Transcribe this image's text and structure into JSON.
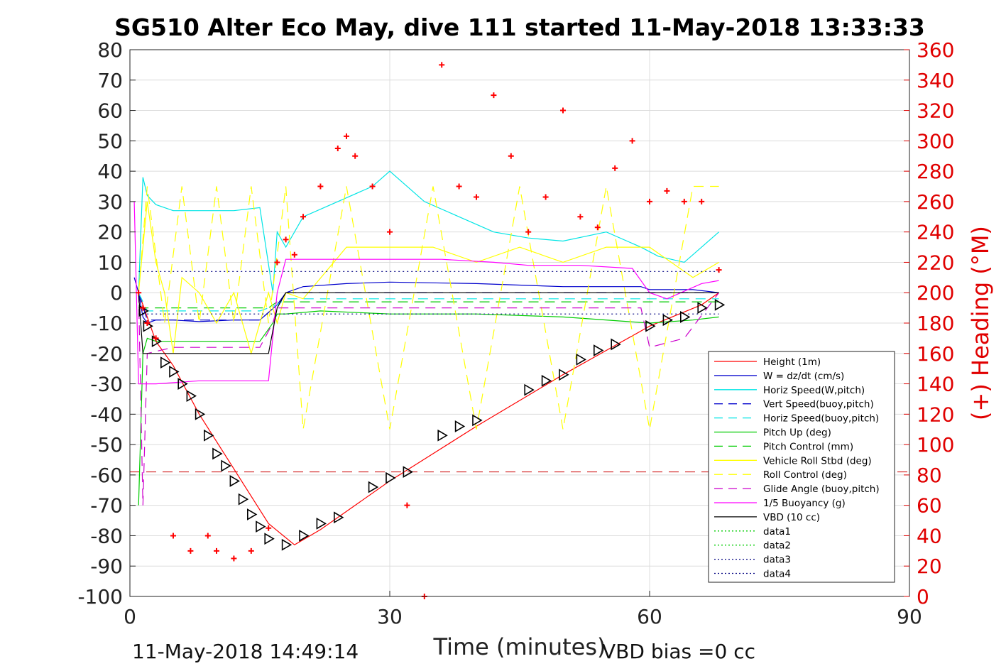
{
  "title": "SG510 Alter Eco May, dive 111 started 11-May-2018 13:33:33",
  "footer_left": "11-May-2018 14:49:14",
  "footer_right": "VBD bias =0 cc",
  "chart_data": {
    "type": "line",
    "xlabel": "Time (minutes)",
    "ylabel": "",
    "y2label": "(+) Heading (°M)",
    "xlim": [
      0,
      90
    ],
    "ylim": [
      -100,
      80
    ],
    "y2lim": [
      0,
      360
    ],
    "xticks": [
      0,
      30,
      60,
      90
    ],
    "yticks": [
      80,
      70,
      60,
      50,
      40,
      30,
      20,
      10,
      0,
      -10,
      -20,
      -30,
      -40,
      -50,
      -60,
      -70,
      -80,
      -90,
      -100
    ],
    "y2ticks": [
      360,
      340,
      320,
      300,
      280,
      260,
      240,
      220,
      200,
      180,
      160,
      140,
      120,
      100,
      80,
      60,
      40,
      20,
      0
    ],
    "grid": true,
    "legend_position": "lower-right",
    "colors": {
      "height": "#ff0000",
      "w": "#0000cc",
      "horiz": "#00e5e5",
      "pitch": "#00cc00",
      "roll": "#ffff00",
      "glide": "#cc00cc",
      "buoy": "#ff00ff",
      "vbd": "#000000",
      "heading": "#ff0000",
      "depth_marker": "#000000"
    },
    "series": [
      {
        "name": "Height (1m)",
        "style": "solid",
        "color": "#ff0000",
        "x": [
          1,
          2,
          3,
          5,
          8,
          12,
          16,
          19,
          22,
          30,
          40,
          50,
          60,
          66,
          68
        ],
        "y": [
          0,
          -8,
          -16,
          -24,
          -40,
          -58,
          -76,
          -83,
          -78,
          -62,
          -44,
          -27,
          -11,
          -4,
          0
        ]
      },
      {
        "name": "W = dz/dt (cm/s)",
        "style": "solid",
        "color": "#0000cc",
        "x": [
          0.5,
          1,
          1.5,
          2,
          3,
          5,
          8,
          12,
          15,
          17,
          18,
          20,
          25,
          30,
          40,
          50,
          59,
          60,
          65,
          68
        ],
        "y": [
          5,
          0,
          -8,
          -10,
          -9,
          -9,
          -9.5,
          -9,
          -9,
          -4,
          0,
          2,
          3,
          3.5,
          3,
          2,
          2,
          1,
          1,
          0
        ]
      },
      {
        "name": "Horiz Speed(W,pitch)",
        "style": "solid",
        "color": "#00e5e5",
        "x": [
          1,
          1.5,
          2,
          3,
          5,
          8,
          12,
          15,
          16.5,
          17,
          18,
          20,
          24,
          28,
          30,
          34,
          38,
          42,
          46,
          50,
          55,
          59,
          61,
          64,
          66,
          68
        ],
        "y": [
          0,
          38,
          32,
          29,
          27,
          27,
          27,
          28,
          0,
          20,
          15,
          25,
          30,
          35,
          40,
          30,
          25,
          20,
          18,
          17,
          20,
          15,
          12,
          10,
          15,
          20
        ]
      },
      {
        "name": "Vert Speed(buoy,pitch)",
        "style": "dashed",
        "color": "#0000cc",
        "x": [
          1,
          2,
          5,
          10,
          15,
          17,
          18,
          30,
          45,
          60,
          68
        ],
        "y": [
          0,
          -9,
          -9,
          -9,
          -9,
          -4,
          0,
          0,
          0,
          0,
          0
        ]
      },
      {
        "name": "Horiz Speed(buoy,pitch)",
        "style": "dashed",
        "color": "#00e5e5",
        "x": [
          1,
          2,
          5,
          10,
          15,
          17,
          18,
          30,
          45,
          60,
          68
        ],
        "y": [
          0,
          -6,
          -6,
          -6,
          -6,
          -4,
          -2,
          -2,
          -2,
          -2,
          -2
        ]
      },
      {
        "name": "Pitch Up (deg)",
        "style": "solid",
        "color": "#00cc00",
        "x": [
          1,
          1.5,
          2,
          3,
          5,
          8,
          12,
          15,
          16.5,
          17,
          18,
          22,
          30,
          40,
          50,
          60,
          65,
          68
        ],
        "y": [
          -70,
          -20,
          -15,
          -16,
          -16,
          -16,
          -16,
          -16,
          -10,
          -7,
          -7,
          -6,
          -7,
          -7,
          -8,
          -10,
          -9,
          -8
        ]
      },
      {
        "name": "Pitch Control (mm)",
        "style": "dashed",
        "color": "#00cc00",
        "x": [
          1,
          2,
          16,
          17,
          68
        ],
        "y": [
          -5,
          -5,
          -5,
          -3,
          -3
        ]
      },
      {
        "name": "Vehicle Roll Stbd (deg)",
        "style": "solid",
        "color": "#ffff00",
        "x": [
          1,
          2,
          3,
          4,
          5,
          6,
          8,
          10,
          12,
          14,
          16,
          17,
          18,
          20,
          25,
          30,
          35,
          40,
          45,
          50,
          55,
          60,
          65,
          68
        ],
        "y": [
          0,
          30,
          10,
          0,
          -20,
          5,
          0,
          -10,
          0,
          -20,
          0,
          -10,
          0,
          -2,
          15,
          15,
          15,
          10,
          15,
          10,
          15,
          15,
          5,
          10
        ]
      },
      {
        "name": "Roll Control (deg)",
        "style": "dashed",
        "color": "#ffff00",
        "x": [
          1,
          2,
          4,
          6,
          8,
          10,
          12,
          14,
          16,
          18,
          20,
          25,
          30,
          35,
          40,
          45,
          50,
          55,
          60,
          65,
          68
        ],
        "y": [
          0,
          35,
          -10,
          35,
          -10,
          35,
          -10,
          35,
          -10,
          35,
          -45,
          35,
          -45,
          35,
          -45,
          35,
          -45,
          35,
          -45,
          35,
          35
        ]
      },
      {
        "name": "Glide Angle (buoy,pitch)",
        "style": "dashed",
        "color": "#cc00cc",
        "x": [
          1,
          1.5,
          2,
          5,
          10,
          15,
          16.5,
          17,
          18,
          30,
          45,
          59,
          60,
          64,
          68
        ],
        "y": [
          0,
          -70,
          -20,
          -18,
          -18,
          -18,
          -10,
          -5,
          -5,
          -5,
          -5,
          -5,
          -18,
          -15,
          0
        ]
      },
      {
        "name": "1/5 Buoyancy (g)",
        "style": "solid",
        "color": "#ff00ff",
        "x": [
          0.5,
          1,
          2,
          3,
          8,
          12,
          16,
          17,
          18,
          25,
          30,
          36,
          42,
          46,
          52,
          58,
          60,
          62,
          66,
          68
        ],
        "y": [
          30,
          -30,
          -30,
          -30,
          -29,
          -29,
          -29,
          0,
          11,
          11,
          11,
          11,
          10,
          9,
          9,
          8,
          0,
          -2,
          3,
          4
        ]
      },
      {
        "name": "VBD (10 cc)",
        "style": "solid",
        "color": "#000000",
        "x": [
          1,
          1.5,
          2,
          5,
          10,
          15,
          16,
          17,
          18,
          30,
          45,
          60,
          68
        ],
        "y": [
          0,
          -20,
          -20,
          -20,
          -20,
          -20,
          -20,
          -5,
          0,
          0,
          0,
          0,
          0
        ]
      },
      {
        "name": "data1",
        "style": "dotted",
        "color": "#00cc00",
        "x": [],
        "y": []
      },
      {
        "name": "data2",
        "style": "dotted",
        "color": "#00cc00",
        "x": [],
        "y": []
      },
      {
        "name": "data3",
        "style": "dotted",
        "color": "#000080",
        "x": [
          1,
          68
        ],
        "y": [
          7,
          7
        ]
      },
      {
        "name": "data4",
        "style": "dotted",
        "color": "#000080",
        "x": [
          1,
          68
        ],
        "y": [
          -7,
          -7
        ]
      }
    ],
    "reference_line": {
      "y": -59,
      "color": "#cc0000",
      "style": "dashed"
    },
    "heading_points": {
      "axis": "right",
      "x": [
        1,
        1.5,
        2,
        3,
        5,
        7,
        9,
        10,
        12,
        14,
        16,
        17,
        18,
        19,
        20,
        22,
        24,
        25,
        26,
        28,
        30,
        32,
        34,
        36,
        38,
        40,
        42,
        44,
        46,
        48,
        50,
        52,
        54,
        56,
        58,
        60,
        62,
        64,
        66,
        68
      ],
      "y": [
        200,
        190,
        180,
        170,
        40,
        30,
        40,
        30,
        25,
        30,
        45,
        220,
        235,
        225,
        250,
        270,
        295,
        303,
        290,
        270,
        240,
        60,
        0,
        350,
        270,
        263,
        330,
        290,
        240,
        263,
        320,
        250,
        243,
        282,
        300,
        260,
        267,
        260,
        260,
        215
      ]
    },
    "depth_markers": {
      "x": [
        1.5,
        2,
        3,
        4,
        5,
        6,
        7,
        8,
        9,
        10,
        11,
        12,
        13,
        14,
        15,
        16,
        18,
        20,
        22,
        24,
        28,
        30,
        32,
        36,
        38,
        40,
        46,
        48,
        50,
        52,
        54,
        56,
        60,
        62,
        64,
        66,
        68
      ],
      "y": [
        -6,
        -11,
        -16,
        -23,
        -26,
        -30,
        -34,
        -40,
        -47,
        -53,
        -57,
        -62,
        -68,
        -73,
        -77,
        -81,
        -83,
        -80,
        -76,
        -74,
        -64,
        -61,
        -59,
        -47,
        -44,
        -42,
        -32,
        -29,
        -27,
        -22,
        -19,
        -17,
        -11,
        -9,
        -8,
        -5,
        -4
      ]
    }
  },
  "legend": {
    "items": [
      {
        "label": "Height (1m)",
        "color": "#ff0000",
        "dash": ""
      },
      {
        "label": "W = dz/dt (cm/s)",
        "color": "#0000cc",
        "dash": ""
      },
      {
        "label": "Horiz Speed(W,pitch)",
        "color": "#00e5e5",
        "dash": ""
      },
      {
        "label": "Vert Speed(buoy,pitch)",
        "color": "#0000cc",
        "dash": "12,8"
      },
      {
        "label": "Horiz Speed(buoy,pitch)",
        "color": "#00e5e5",
        "dash": "12,8"
      },
      {
        "label": "Pitch Up (deg)",
        "color": "#00cc00",
        "dash": ""
      },
      {
        "label": "Pitch Control (mm)",
        "color": "#00cc00",
        "dash": "12,8"
      },
      {
        "label": "Vehicle Roll Stbd (deg)",
        "color": "#ffff00",
        "dash": ""
      },
      {
        "label": "Roll Control (deg)",
        "color": "#ffff00",
        "dash": "12,8"
      },
      {
        "label": "Glide Angle (buoy,pitch)",
        "color": "#cc00cc",
        "dash": "12,8"
      },
      {
        "label": "1/5 Buoyancy (g)",
        "color": "#ff00ff",
        "dash": ""
      },
      {
        "label": "VBD (10 cc)",
        "color": "#000000",
        "dash": ""
      },
      {
        "label": "data1",
        "color": "#00cc00",
        "dash": "2,3"
      },
      {
        "label": "data2",
        "color": "#00cc00",
        "dash": "2,3"
      },
      {
        "label": "data3",
        "color": "#000080",
        "dash": "2,3"
      },
      {
        "label": "data4",
        "color": "#000080",
        "dash": "2,3"
      }
    ]
  }
}
